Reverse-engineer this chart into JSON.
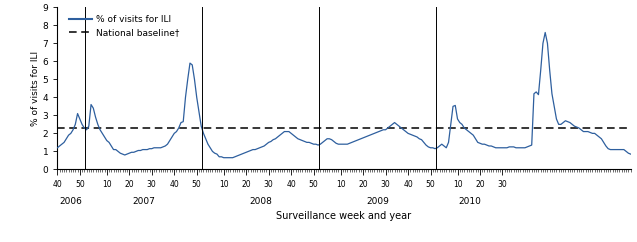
{
  "baseline": 2.3,
  "baseline_label": "National baseline†",
  "ili_label": "% of visits for ILI",
  "ylabel": "% of visits for ILI",
  "xlabel": "Surveillance week and year",
  "ylim": [
    0,
    9
  ],
  "yticks": [
    0,
    1,
    2,
    3,
    4,
    5,
    6,
    7,
    8,
    9
  ],
  "line_color": "#2e5f9e",
  "baseline_color": "#000000",
  "ili_values": [
    1.2,
    1.3,
    1.4,
    1.5,
    1.7,
    1.9,
    2.0,
    2.2,
    2.5,
    3.1,
    2.8,
    2.5,
    2.3,
    2.2,
    2.4,
    3.6,
    3.4,
    2.9,
    2.5,
    2.2,
    2.0,
    1.8,
    1.6,
    1.5,
    1.3,
    1.1,
    1.1,
    1.0,
    0.9,
    0.85,
    0.8,
    0.85,
    0.9,
    0.95,
    0.95,
    1.0,
    1.05,
    1.05,
    1.1,
    1.1,
    1.1,
    1.15,
    1.15,
    1.2,
    1.2,
    1.2,
    1.2,
    1.25,
    1.3,
    1.4,
    1.6,
    1.8,
    2.0,
    2.1,
    2.3,
    2.6,
    2.65,
    4.0,
    5.0,
    5.9,
    5.8,
    5.0,
    4.0,
    3.2,
    2.4,
    2.0,
    1.7,
    1.4,
    1.2,
    1.0,
    0.9,
    0.85,
    0.7,
    0.7,
    0.65,
    0.65,
    0.65,
    0.65,
    0.65,
    0.7,
    0.75,
    0.8,
    0.85,
    0.9,
    0.95,
    1.0,
    1.05,
    1.1,
    1.1,
    1.15,
    1.2,
    1.25,
    1.3,
    1.4,
    1.5,
    1.55,
    1.65,
    1.7,
    1.8,
    1.9,
    2.0,
    2.1,
    2.1,
    2.1,
    2.0,
    1.9,
    1.8,
    1.7,
    1.65,
    1.6,
    1.55,
    1.5,
    1.5,
    1.45,
    1.4,
    1.4,
    1.35,
    1.4,
    1.5,
    1.6,
    1.7,
    1.7,
    1.65,
    1.55,
    1.45,
    1.4,
    1.4,
    1.4,
    1.4,
    1.4,
    1.45,
    1.5,
    1.55,
    1.6,
    1.65,
    1.7,
    1.75,
    1.8,
    1.85,
    1.9,
    1.95,
    2.0,
    2.05,
    2.1,
    2.15,
    2.2,
    2.2,
    2.3,
    2.4,
    2.5,
    2.6,
    2.5,
    2.4,
    2.3,
    2.2,
    2.1,
    2.0,
    1.95,
    1.9,
    1.85,
    1.8,
    1.7,
    1.65,
    1.5,
    1.35,
    1.25,
    1.2,
    1.2,
    1.15,
    1.2,
    1.3,
    1.4,
    1.3,
    1.2,
    1.5,
    2.5,
    3.5,
    3.55,
    2.8,
    2.6,
    2.5,
    2.3,
    2.2,
    2.1,
    2.0,
    1.9,
    1.7,
    1.5,
    1.45,
    1.4,
    1.4,
    1.35,
    1.3,
    1.3,
    1.25,
    1.2,
    1.2,
    1.2,
    1.2,
    1.2,
    1.2,
    1.25,
    1.25,
    1.25,
    1.2,
    1.2,
    1.2,
    1.2,
    1.2,
    1.25,
    1.3,
    1.35,
    4.2,
    4.3,
    4.15,
    5.5,
    7.0,
    7.6,
    7.0,
    5.5,
    4.2,
    3.5,
    2.8,
    2.5,
    2.5,
    2.6,
    2.7,
    2.65,
    2.6,
    2.5,
    2.4,
    2.35,
    2.3,
    2.2,
    2.1,
    2.1,
    2.1,
    2.05,
    2.0,
    2.0,
    1.9,
    1.8,
    1.7,
    1.5,
    1.3,
    1.15,
    1.1,
    1.1,
    1.1,
    1.1,
    1.1,
    1.1,
    1.1,
    1.0,
    0.9,
    0.85
  ]
}
